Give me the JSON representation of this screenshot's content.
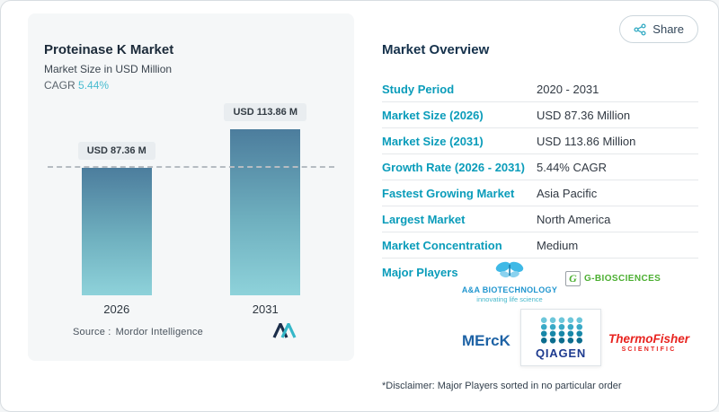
{
  "page": {
    "share_label": "Share"
  },
  "snapshot": {
    "title": "Proteinase K Market",
    "subtitle": "Market Size in USD Million",
    "cagr_label": "CAGR",
    "cagr_value": "5.44%",
    "source_label": "Source :",
    "source_name": "Mordor Intelligence"
  },
  "chart_data": {
    "type": "bar",
    "title": "Proteinase K Market",
    "subtitle": "Market Size in USD Million",
    "categories": [
      "2026",
      "2031"
    ],
    "values": [
      87.36,
      113.86
    ],
    "value_labels": [
      "USD 87.36 M",
      "USD 113.86 M"
    ],
    "unit": "USD Million",
    "cagr_percent": 5.44,
    "reference_line_y": 87.36,
    "ylim": [
      0,
      120
    ],
    "legend": "none",
    "grid": "off",
    "bar_color_top": "#4c7d9d",
    "bar_color_bottom": "#8ed2da"
  },
  "overview": {
    "title": "Market Overview",
    "rows": [
      {
        "label": "Study Period",
        "value": "2020 - 2031"
      },
      {
        "label": "Market Size (2026)",
        "value": "USD 87.36 Million"
      },
      {
        "label": "Market Size (2031)",
        "value": "USD 113.86 Million"
      },
      {
        "label": "Growth Rate (2026 - 2031)",
        "value": "5.44% CAGR"
      },
      {
        "label": "Fastest Growing Market",
        "value": "Asia Pacific"
      },
      {
        "label": "Largest Market",
        "value": "North America"
      },
      {
        "label": "Market Concentration",
        "value": "Medium"
      }
    ],
    "major_players_label": "Major Players",
    "disclaimer": "*Disclaimer: Major Players sorted in no particular order"
  },
  "players": {
    "aa": {
      "name": "A&A BIOTECHNOLOGY",
      "tagline": "innovating life science"
    },
    "gbio": {
      "letter": "G",
      "name": "G-BIOSCIENCES"
    },
    "merck": {
      "name": "MErcK"
    },
    "qiagen": {
      "name": "QIAGEN"
    },
    "thermo": {
      "name": "ThermoFisher",
      "sub": "SCIENTIFIC"
    }
  },
  "colors": {
    "accent": "#0a9cba",
    "cagr_value": "#49bcd0",
    "bar_top": "#4c7d9d",
    "bar_bottom": "#8ed2da",
    "dashed_line": "#b6bcc2",
    "thermo_red": "#e8231f",
    "merck_blue": "#1d62a5",
    "gbio_green": "#4caf32"
  }
}
